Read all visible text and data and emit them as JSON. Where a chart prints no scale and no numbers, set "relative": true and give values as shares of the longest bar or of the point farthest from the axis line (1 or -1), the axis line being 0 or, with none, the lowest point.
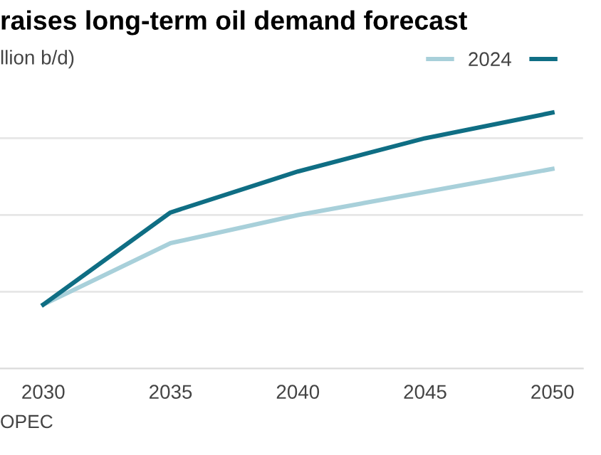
{
  "chart_data": {
    "type": "line",
    "title": "raises long-term oil demand forecast",
    "subtitle": "llion b/d)",
    "x": [
      2030,
      2035,
      2040,
      2045,
      2050
    ],
    "xlim": [
      2028.3,
      2051.2
    ],
    "xticks": [
      2030,
      2035,
      2040,
      2045,
      2050
    ],
    "relative": true,
    "grid": "y",
    "legend": "top right",
    "marker": "none",
    "line_style": "solid",
    "series": [
      {
        "name": "2024",
        "color": "#a8d0da",
        "values": [
          0.25,
          0.49,
          0.6,
          0.69,
          0.78
        ]
      },
      {
        "color": "#0f6e84",
        "values": [
          0.25,
          0.61,
          0.77,
          0.9,
          1.0
        ]
      }
    ],
    "annotations": [
      "OPEC"
    ]
  }
}
